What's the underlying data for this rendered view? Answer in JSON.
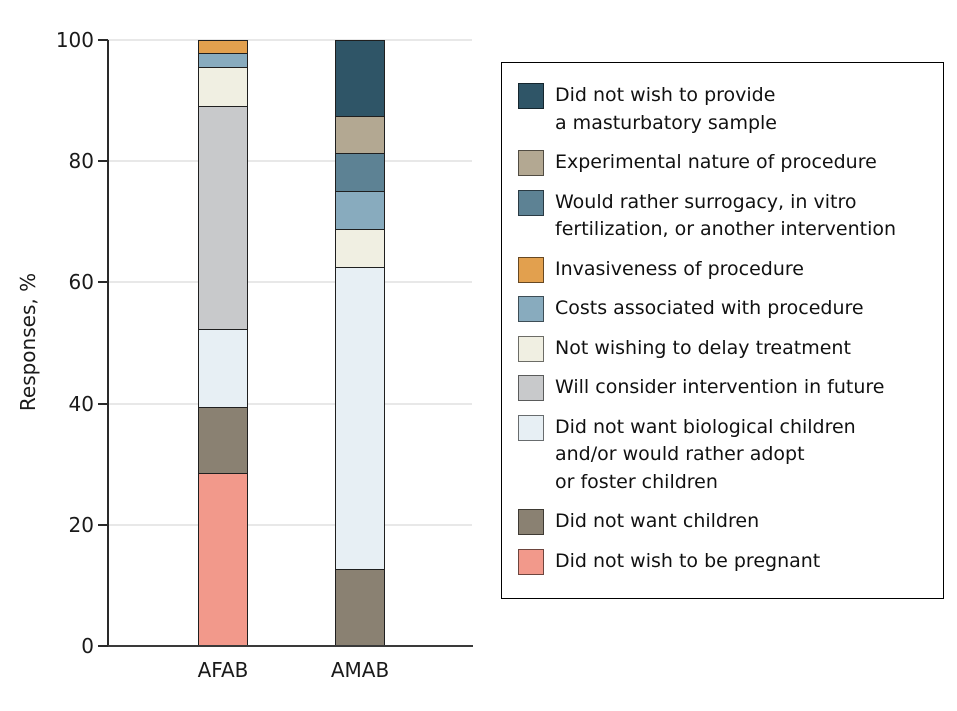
{
  "figure": {
    "background": "#ffffff",
    "axis_color": "#2a2a2a",
    "gridline_color": "#e8e8e8",
    "segment_stroke": "#1f1f1f"
  },
  "chart_data": {
    "type": "bar",
    "subtype": "stacked-vertical",
    "title": "",
    "xlabel": "",
    "ylabel": "Responses, %",
    "ylim": [
      0,
      100
    ],
    "yticks": [
      0,
      20,
      40,
      60,
      80,
      100
    ],
    "grid": true,
    "legend_position": "right",
    "categories": [
      "AFAB",
      "AMAB"
    ],
    "series": [
      {
        "name": "Did not wish to provide a masturbatory sample",
        "legend_lines": [
          "Did not wish to provide",
          "a masturbatory sample"
        ],
        "color": "#2f5567",
        "values": [
          0,
          12.5
        ]
      },
      {
        "name": "Experimental nature of procedure",
        "legend_lines": [
          "Experimental nature of procedure"
        ],
        "color": "#b3a892",
        "values": [
          0,
          6.25
        ]
      },
      {
        "name": "Would rather surrogacy, in vitro fertilization, or another intervention",
        "legend_lines": [
          "Would rather surrogacy, in vitro",
          "fertilization, or another intervention"
        ],
        "color": "#5d8294",
        "values": [
          0,
          6.25
        ]
      },
      {
        "name": "Invasiveness of procedure",
        "legend_lines": [
          "Invasiveness of procedure"
        ],
        "color": "#e2a04e",
        "values": [
          2.2,
          0
        ]
      },
      {
        "name": "Costs associated with procedure",
        "legend_lines": [
          "Costs associated with procedure"
        ],
        "color": "#88abbe",
        "values": [
          2.2,
          6.25
        ]
      },
      {
        "name": "Not wishing to delay treatment",
        "legend_lines": [
          "Not wishing to delay treatment"
        ],
        "color": "#f0efe2",
        "values": [
          6.5,
          6.25
        ]
      },
      {
        "name": "Will consider intervention in future",
        "legend_lines": [
          "Will consider intervention in future"
        ],
        "color": "#c8c9cb",
        "values": [
          37.0,
          0
        ]
      },
      {
        "name": "Did not want biological children and/or would rather adopt or foster children",
        "legend_lines": [
          "Did not want biological children",
          "and/or would rather adopt",
          "or foster children"
        ],
        "color": "#e7eff4",
        "values": [
          13.0,
          50.0
        ]
      },
      {
        "name": "Did not want children",
        "legend_lines": [
          "Did not want children"
        ],
        "color": "#8a8172",
        "values": [
          10.9,
          12.5
        ]
      },
      {
        "name": "Did not wish to be pregnant",
        "legend_lines": [
          "Did not wish to be pregnant"
        ],
        "color": "#f2998b",
        "values": [
          28.3,
          0
        ]
      }
    ]
  }
}
